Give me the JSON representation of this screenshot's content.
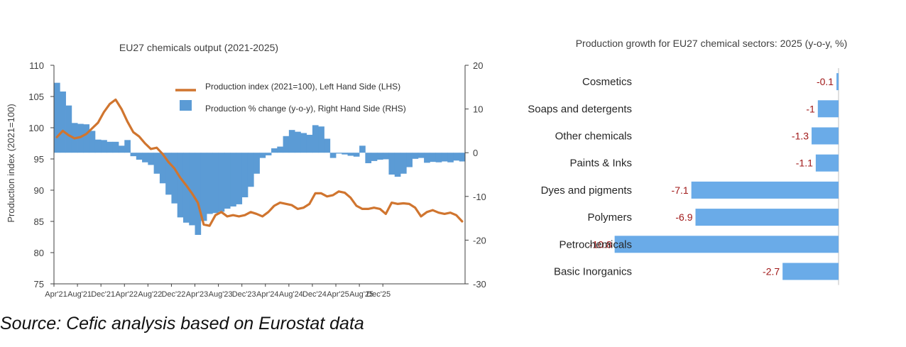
{
  "source_note": "Source: Cefic analysis based on Eurostat data",
  "colors": {
    "line": "#d0752f",
    "bar": "#5b9bd5",
    "sector_bar": "#6aabe8",
    "sector_value": "#a01818",
    "axis": "#404040"
  },
  "chart_data": [
    {
      "type": "bar+line",
      "title": "EU27 chemicals output (2021-2025)",
      "ylabel": "Production index (2021=100)",
      "ylim": [
        75,
        110
      ],
      "y_ticks": [
        "75",
        "80",
        "85",
        "90",
        "95",
        "100",
        "105",
        "110"
      ],
      "y2lim": [
        -30,
        20
      ],
      "y2_ticks": [
        "-30",
        "-20",
        "-10",
        "0",
        "10",
        "20"
      ],
      "x_tick_labels": [
        "Apr'21",
        "Aug'21",
        "Dec'21",
        "Apr'22",
        "Aug'22",
        "Dec'22",
        "Apr'23",
        "Aug'23",
        "Dec'23",
        "Apr'24",
        "Aug'24",
        "Dec'24",
        "Apr'25",
        "Aug'25",
        "Dec'25"
      ],
      "legend": [
        {
          "label": "Production index (2021=100), Left Hand Side (LHS)",
          "kind": "line"
        },
        {
          "label": "Production % change (y-o-y), Right Hand Side (RHS)",
          "kind": "bar"
        }
      ],
      "series": [
        {
          "axis": "left",
          "kind": "line",
          "values": [
            98.5,
            99.5,
            98.8,
            98.3,
            98.5,
            99.0,
            99.9,
            100.8,
            102.5,
            103.8,
            104.5,
            103.0,
            101.0,
            99.3,
            98.6,
            97.5,
            96.6,
            96.8,
            95.8,
            94.5,
            93.5,
            92.0,
            90.8,
            89.5,
            88.0,
            84.5,
            84.3,
            86.0,
            86.5,
            85.8,
            86.0,
            85.8,
            86.0,
            86.5,
            86.2,
            85.8,
            86.5,
            87.5,
            88.0,
            87.8,
            87.6,
            87.0,
            87.2,
            87.8,
            89.5,
            89.5,
            89.0,
            89.2,
            89.8,
            89.6,
            88.8,
            87.5,
            87.0,
            87.0,
            87.2,
            87.0,
            86.2,
            88.0,
            87.8,
            87.9,
            87.8,
            87.2,
            85.8,
            86.5,
            86.8,
            86.4,
            86.2,
            86.4,
            86.0,
            85.0
          ]
        },
        {
          "axis": "right",
          "kind": "bar",
          "values": [
            16.0,
            14.0,
            10.8,
            6.8,
            6.6,
            6.5,
            5.0,
            3.0,
            2.9,
            2.5,
            2.5,
            1.6,
            2.9,
            -0.8,
            -1.6,
            -2.2,
            -2.8,
            -4.8,
            -7.0,
            -9.6,
            -11.6,
            -14.8,
            -16.0,
            -16.6,
            -18.8,
            -15.6,
            -14.0,
            -13.8,
            -13.5,
            -12.8,
            -12.3,
            -11.8,
            -10.2,
            -7.8,
            -4.8,
            -1.2,
            -0.6,
            1.0,
            1.4,
            3.8,
            5.2,
            4.8,
            4.5,
            4.1,
            6.3,
            6.0,
            3.2,
            -1.2,
            -0.2,
            -0.4,
            -0.7,
            -0.9,
            1.6,
            -2.4,
            -1.9,
            -1.6,
            -1.5,
            -5.0,
            -5.5,
            -4.8,
            -3.3,
            -1.4,
            -1.2,
            -2.3,
            -2.1,
            -2.2,
            -2.0,
            -2.2,
            -1.8,
            -2.0
          ]
        }
      ]
    },
    {
      "type": "bar",
      "orientation": "horizontal",
      "title": "Production growth for EU27 chemical sectors: 2025 (y-o-y, %)",
      "categories": [
        "Cosmetics",
        "Soaps and detergents",
        "Other chemicals",
        "Paints & Inks",
        "Dyes and pigments",
        "Polymers",
        "Petrochemicals",
        "Basic Inorganics"
      ],
      "values": [
        -0.1,
        -1,
        -1.3,
        -1.1,
        -7.1,
        -6.9,
        -10.8,
        -2.7
      ],
      "value_labels": [
        "-0.1",
        "-1",
        "-1.3",
        "-1.1",
        "-7.1",
        "-6.9",
        "-10.8",
        "-2.7"
      ],
      "xlim": [
        -11.5,
        0
      ]
    }
  ]
}
